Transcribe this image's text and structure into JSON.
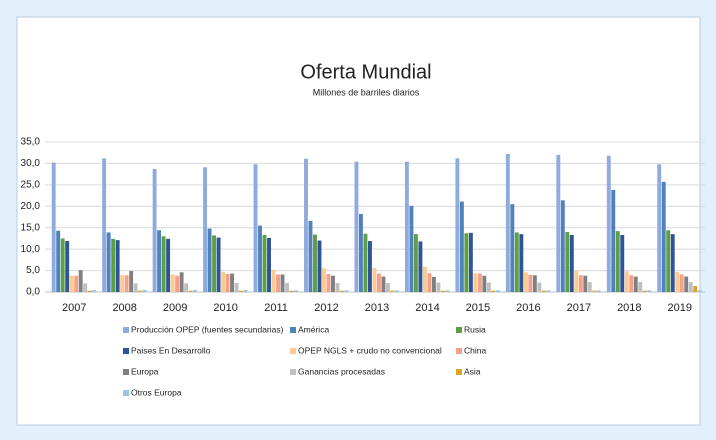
{
  "chart_data": {
    "type": "bar",
    "title": "Oferta Mundial",
    "subtitle": "Millones de barriles diarios",
    "categories": [
      "2007",
      "2008",
      "2009",
      "2010",
      "2011",
      "2012",
      "2013",
      "2014",
      "2015",
      "2016",
      "2017",
      "2018",
      "2019"
    ],
    "ylim": [
      0,
      35
    ],
    "yticks": [
      {
        "value": 0,
        "label": "0,0"
      },
      {
        "value": 5,
        "label": "5,0"
      },
      {
        "value": 10,
        "label": "10,0"
      },
      {
        "value": 15,
        "label": "15,0"
      },
      {
        "value": 20,
        "label": "20,0"
      },
      {
        "value": 25,
        "label": "25,0"
      },
      {
        "value": 30,
        "label": "30,0"
      },
      {
        "value": 35,
        "label": "35,0"
      }
    ],
    "grid": true,
    "legend": "bottom",
    "series": [
      {
        "name": "Producción OPEP (fuentes secundarias)",
        "color": "#8faadc",
        "values": [
          30.2,
          31.2,
          28.7,
          29.1,
          29.8,
          31.1,
          30.4,
          30.4,
          31.2,
          32.2,
          32.0,
          31.8,
          29.8
        ]
      },
      {
        "name": "América",
        "color": "#4f81bd",
        "values": [
          14.3,
          13.9,
          14.4,
          14.8,
          15.5,
          16.6,
          18.2,
          20.1,
          21.1,
          20.5,
          21.4,
          23.8,
          25.7
        ]
      },
      {
        "name": "Rusia",
        "color": "#5e9e45",
        "values": [
          12.5,
          12.4,
          13.0,
          13.2,
          13.3,
          13.4,
          13.6,
          13.5,
          13.7,
          13.9,
          14.0,
          14.2,
          14.4
        ]
      },
      {
        "name": "Paises En Desarrollo",
        "color": "#2e5597",
        "values": [
          11.9,
          12.1,
          12.4,
          12.7,
          12.6,
          12.0,
          11.9,
          11.8,
          13.8,
          13.5,
          13.3,
          13.3,
          13.5
        ]
      },
      {
        "name": "OPEP NGLS + crudo no convencional",
        "color": "#ffc98f",
        "values": [
          3.8,
          4.0,
          4.1,
          4.7,
          5.2,
          5.5,
          5.6,
          5.9,
          4.4,
          4.6,
          4.9,
          4.8,
          4.7
        ]
      },
      {
        "name": "China",
        "color": "#f4a08a",
        "values": [
          3.8,
          3.9,
          3.8,
          4.2,
          4.1,
          4.2,
          4.3,
          4.4,
          4.3,
          4.0,
          3.9,
          3.9,
          4.1
        ]
      },
      {
        "name": "Europa",
        "color": "#808080",
        "values": [
          5.1,
          4.9,
          4.6,
          4.3,
          4.1,
          3.8,
          3.6,
          3.5,
          3.8,
          3.9,
          3.8,
          3.6,
          3.6
        ]
      },
      {
        "name": "Ganancias procesadas",
        "color": "#bfbfbf",
        "values": [
          2.0,
          2.0,
          2.0,
          2.1,
          2.1,
          2.1,
          2.1,
          2.2,
          2.2,
          2.2,
          2.3,
          2.3,
          2.3
        ]
      },
      {
        "name": "Asia",
        "color": "#d9a52a",
        "values": [
          0.3,
          0.3,
          0.3,
          0.3,
          0.3,
          0.3,
          0.3,
          0.3,
          0.3,
          0.3,
          0.3,
          0.3,
          1.4
        ]
      },
      {
        "name": "Otros Europa",
        "color": "#9dc3e6",
        "values": [
          0.5,
          0.5,
          0.5,
          0.5,
          0.4,
          0.4,
          0.4,
          0.4,
          0.4,
          0.4,
          0.4,
          0.4,
          0.4
        ]
      }
    ]
  }
}
